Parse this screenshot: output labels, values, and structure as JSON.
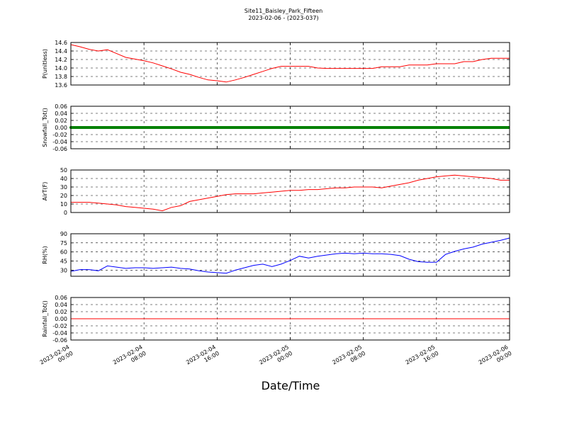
{
  "header": {
    "title": "Site11_Baisley_Park_Fifteen",
    "subtitle": "2023-02-06 - (2023-037)"
  },
  "chart_data": {
    "type": "line",
    "xlabel": "Date/Time",
    "x_range": [
      "2023-02-04 00:00",
      "2023-02-06 00:00"
    ],
    "x_ticks": [
      {
        "value": "2023-02-04 00:00",
        "line1": "2023-02-04",
        "line2": "00:00"
      },
      {
        "value": "2023-02-04 08:00",
        "line1": "2023-02-04",
        "line2": "08:00"
      },
      {
        "value": "2023-02-04 16:00",
        "line1": "2023-02-04",
        "line2": "16:00"
      },
      {
        "value": "2023-02-05 00:00",
        "line1": "2023-02-05",
        "line2": "00:00"
      },
      {
        "value": "2023-02-05 08:00",
        "line1": "2023-02-05",
        "line2": "08:00"
      },
      {
        "value": "2023-02-05 16:00",
        "line1": "2023-02-05",
        "line2": "16:00"
      },
      {
        "value": "2023-02-06 00:00",
        "line1": "2023-02-06",
        "line2": "00:00"
      }
    ],
    "grid": true,
    "panels": [
      {
        "ylabel": "P(unitless)",
        "ylim": [
          13.6,
          14.6
        ],
        "yticks": [
          "13.6",
          "13.8",
          "14.0",
          "14.2",
          "14.4",
          "14.6"
        ],
        "color": "#ff0000",
        "style": "line",
        "x": [
          "2023-02-04 00:00",
          "2023-02-04 01:00",
          "2023-02-04 02:00",
          "2023-02-04 03:00",
          "2023-02-04 04:00",
          "2023-02-04 05:00",
          "2023-02-04 06:00",
          "2023-02-04 07:00",
          "2023-02-04 08:00",
          "2023-02-04 09:00",
          "2023-02-04 10:00",
          "2023-02-04 11:00",
          "2023-02-04 12:00",
          "2023-02-04 13:00",
          "2023-02-04 14:00",
          "2023-02-04 15:00",
          "2023-02-04 16:00",
          "2023-02-04 17:00",
          "2023-02-04 18:00",
          "2023-02-04 19:00",
          "2023-02-04 20:00",
          "2023-02-04 21:00",
          "2023-02-04 22:00",
          "2023-02-04 23:00",
          "2023-02-05 00:00",
          "2023-02-05 01:00",
          "2023-02-05 02:00",
          "2023-02-05 03:00",
          "2023-02-05 04:00",
          "2023-02-05 05:00",
          "2023-02-05 06:00",
          "2023-02-05 07:00",
          "2023-02-05 08:00",
          "2023-02-05 09:00",
          "2023-02-05 10:00",
          "2023-02-05 11:00",
          "2023-02-05 12:00",
          "2023-02-05 13:00",
          "2023-02-05 14:00",
          "2023-02-05 15:00",
          "2023-02-05 16:00",
          "2023-02-05 17:00",
          "2023-02-05 18:00",
          "2023-02-05 19:00",
          "2023-02-05 20:00",
          "2023-02-05 21:00",
          "2023-02-05 22:00",
          "2023-02-05 23:00",
          "2023-02-06 00:00"
        ],
        "values": [
          14.55,
          14.5,
          14.44,
          14.4,
          14.43,
          14.34,
          14.25,
          14.21,
          14.17,
          14.12,
          14.05,
          13.98,
          13.9,
          13.85,
          13.78,
          13.72,
          13.7,
          13.67,
          13.72,
          13.78,
          13.85,
          13.92,
          13.99,
          14.04,
          14.04,
          14.04,
          14.04,
          14.0,
          13.99,
          13.99,
          13.99,
          13.99,
          13.99,
          13.99,
          14.03,
          14.03,
          14.03,
          14.07,
          14.07,
          14.07,
          14.1,
          14.1,
          14.1,
          14.15,
          14.15,
          14.2,
          14.23,
          14.23,
          14.23
        ]
      },
      {
        "ylabel": "Snowfall_Tot()",
        "ylim": [
          -0.06,
          0.06
        ],
        "yticks": [
          "-0.06",
          "-0.04",
          "-0.02",
          "0.00",
          "0.02",
          "0.04",
          "0.06"
        ],
        "color": "#008000",
        "style": "markers",
        "x": [
          "2023-02-04 00:00",
          "2023-02-06 00:00"
        ],
        "values": [
          0.0,
          0.0
        ]
      },
      {
        "ylabel": "AirT(F)",
        "ylim": [
          0,
          50
        ],
        "yticks": [
          "0",
          "10",
          "20",
          "30",
          "40",
          "50"
        ],
        "color": "#ff0000",
        "style": "line",
        "x": [
          "2023-02-04 00:00",
          "2023-02-04 01:00",
          "2023-02-04 02:00",
          "2023-02-04 03:00",
          "2023-02-04 04:00",
          "2023-02-04 05:00",
          "2023-02-04 06:00",
          "2023-02-04 07:00",
          "2023-02-04 08:00",
          "2023-02-04 09:00",
          "2023-02-04 10:00",
          "2023-02-04 11:00",
          "2023-02-04 12:00",
          "2023-02-04 13:00",
          "2023-02-04 14:00",
          "2023-02-04 15:00",
          "2023-02-04 16:00",
          "2023-02-04 17:00",
          "2023-02-04 18:00",
          "2023-02-04 19:00",
          "2023-02-04 20:00",
          "2023-02-04 21:00",
          "2023-02-04 22:00",
          "2023-02-04 23:00",
          "2023-02-05 00:00",
          "2023-02-05 01:00",
          "2023-02-05 02:00",
          "2023-02-05 03:00",
          "2023-02-05 04:00",
          "2023-02-05 05:00",
          "2023-02-05 06:00",
          "2023-02-05 07:00",
          "2023-02-05 08:00",
          "2023-02-05 09:00",
          "2023-02-05 10:00",
          "2023-02-05 11:00",
          "2023-02-05 12:00",
          "2023-02-05 13:00",
          "2023-02-05 14:00",
          "2023-02-05 15:00",
          "2023-02-05 16:00",
          "2023-02-05 17:00",
          "2023-02-05 18:00",
          "2023-02-05 19:00",
          "2023-02-05 20:00",
          "2023-02-05 21:00",
          "2023-02-05 22:00",
          "2023-02-05 23:00",
          "2023-02-06 00:00"
        ],
        "values": [
          12,
          12,
          12,
          11,
          10,
          9,
          7,
          6,
          5,
          4,
          2,
          6,
          8,
          13,
          15,
          17,
          19,
          21,
          22,
          22,
          22,
          23,
          24,
          25,
          26,
          26,
          27,
          27,
          28,
          29,
          29,
          30,
          30,
          30,
          29,
          31,
          33,
          35,
          38,
          40,
          42,
          43,
          44,
          43,
          42,
          41,
          40,
          38,
          38
        ]
      },
      {
        "ylabel": "RH(%)",
        "ylim": [
          20,
          90
        ],
        "yticks": [
          "30",
          "45",
          "60",
          "75",
          "90"
        ],
        "color": "#0000ff",
        "style": "line",
        "x": [
          "2023-02-04 00:00",
          "2023-02-04 01:00",
          "2023-02-04 02:00",
          "2023-02-04 03:00",
          "2023-02-04 04:00",
          "2023-02-04 05:00",
          "2023-02-04 06:00",
          "2023-02-04 07:00",
          "2023-02-04 08:00",
          "2023-02-04 09:00",
          "2023-02-04 10:00",
          "2023-02-04 11:00",
          "2023-02-04 12:00",
          "2023-02-04 13:00",
          "2023-02-04 14:00",
          "2023-02-04 15:00",
          "2023-02-04 16:00",
          "2023-02-04 17:00",
          "2023-02-04 18:00",
          "2023-02-04 19:00",
          "2023-02-04 20:00",
          "2023-02-04 21:00",
          "2023-02-04 22:00",
          "2023-02-04 23:00",
          "2023-02-05 00:00",
          "2023-02-05 01:00",
          "2023-02-05 02:00",
          "2023-02-05 03:00",
          "2023-02-05 04:00",
          "2023-02-05 05:00",
          "2023-02-05 06:00",
          "2023-02-05 07:00",
          "2023-02-05 08:00",
          "2023-02-05 09:00",
          "2023-02-05 10:00",
          "2023-02-05 11:00",
          "2023-02-05 12:00",
          "2023-02-05 13:00",
          "2023-02-05 14:00",
          "2023-02-05 15:00",
          "2023-02-05 16:00",
          "2023-02-05 17:00",
          "2023-02-05 18:00",
          "2023-02-05 19:00",
          "2023-02-05 20:00",
          "2023-02-05 21:00",
          "2023-02-05 22:00",
          "2023-02-05 23:00",
          "2023-02-06 00:00"
        ],
        "values": [
          28,
          31,
          31,
          29,
          37,
          35,
          33,
          34,
          34,
          33,
          34,
          35,
          33,
          32,
          29,
          27,
          26,
          25,
          30,
          34,
          38,
          40,
          36,
          40,
          46,
          53,
          50,
          53,
          55,
          57,
          58,
          57,
          58,
          57,
          57,
          56,
          54,
          48,
          44,
          43,
          43,
          56,
          61,
          65,
          68,
          73,
          76,
          79,
          83
        ]
      },
      {
        "ylabel": "Rainfall_Tot()",
        "ylim": [
          -0.06,
          0.06
        ],
        "yticks": [
          "-0.06",
          "-0.04",
          "-0.02",
          "0.00",
          "0.02",
          "0.04",
          "0.06"
        ],
        "color": "#ff0000",
        "style": "line",
        "x": [
          "2023-02-04 00:00",
          "2023-02-06 00:00"
        ],
        "values": [
          0.0,
          0.0
        ]
      }
    ]
  }
}
